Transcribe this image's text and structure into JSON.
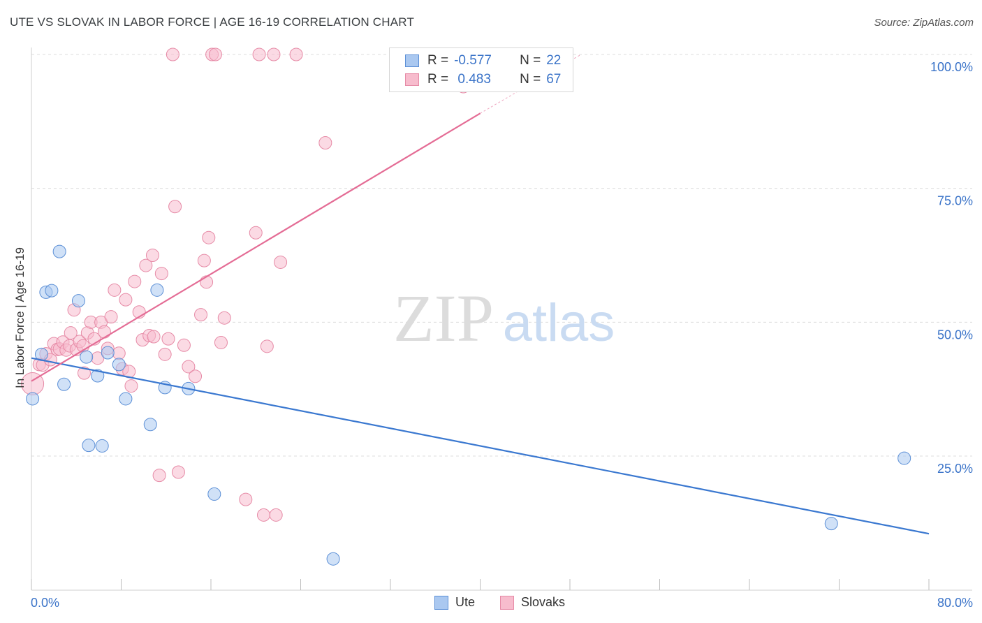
{
  "title": "UTE VS SLOVAK IN LABOR FORCE | AGE 16-19 CORRELATION CHART",
  "source": "Source: ZipAtlas.com",
  "watermark": {
    "zip": "ZIP",
    "atlas": "atlas"
  },
  "legend": {
    "rows": [
      {
        "r_label": "R =",
        "r_value": "-0.577",
        "n_label": "N =",
        "n_value": "22"
      },
      {
        "r_label": "R =",
        "r_value": " 0.483",
        "n_label": "N =",
        "n_value": "67"
      }
    ]
  },
  "bottom_legend": {
    "ute": "Ute",
    "slovaks": "Slovaks"
  },
  "colors": {
    "ute_fill": "#aac8f0",
    "ute_stroke": "#5b8fd6",
    "ute_line": "#3a78d0",
    "slovak_fill": "#f7bccd",
    "slovak_stroke": "#e68aa6",
    "slovak_line": "#e46c95",
    "axis_text": "#3a73c8",
    "grid": "#dcdcdc"
  },
  "chart_data": {
    "type": "scatter",
    "title": "UTE VS SLOVAK IN LABOR FORCE | AGE 16-19 CORRELATION CHART",
    "xlabel": "",
    "ylabel": "In Labor Force | Age 16-19",
    "xlim": [
      0,
      80
    ],
    "ylim": [
      0,
      103
    ],
    "x_tick_labels": [
      "0.0%",
      "80.0%"
    ],
    "y_ticks": [
      25,
      50,
      75,
      100
    ],
    "y_tick_labels": [
      "25.0%",
      "50.0%",
      "75.0%",
      "100.0%"
    ],
    "series": [
      {
        "name": "Ute",
        "r": -0.577,
        "n": 22,
        "points": [
          [
            0.1,
            35.7
          ],
          [
            0.9,
            44.0
          ],
          [
            1.3,
            55.6
          ],
          [
            1.8,
            55.9
          ],
          [
            2.5,
            63.2
          ],
          [
            2.9,
            38.4
          ],
          [
            4.2,
            54.0
          ],
          [
            4.9,
            43.5
          ],
          [
            5.1,
            27.0
          ],
          [
            5.9,
            40.0
          ],
          [
            6.3,
            26.9
          ],
          [
            6.8,
            44.3
          ],
          [
            7.8,
            42.1
          ],
          [
            8.4,
            35.7
          ],
          [
            10.6,
            30.9
          ],
          [
            11.2,
            56.0
          ],
          [
            11.9,
            37.8
          ],
          [
            14.0,
            37.6
          ],
          [
            16.3,
            17.9
          ],
          [
            26.9,
            5.8
          ],
          [
            71.3,
            12.4
          ],
          [
            77.8,
            24.6
          ]
        ],
        "trend": [
          [
            0,
            43.3
          ],
          [
            80,
            10.5
          ]
        ]
      },
      {
        "name": "Slovaks",
        "r": 0.483,
        "n": 67,
        "points": [
          [
            0.1,
            38.5
          ],
          [
            0.7,
            42.1
          ],
          [
            1.0,
            42.0
          ],
          [
            1.3,
            44.1
          ],
          [
            1.7,
            43.0
          ],
          [
            2.0,
            46.0
          ],
          [
            2.3,
            44.9
          ],
          [
            2.5,
            45.0
          ],
          [
            2.8,
            46.3
          ],
          [
            3.1,
            44.8
          ],
          [
            3.4,
            45.6
          ],
          [
            3.5,
            48.0
          ],
          [
            3.8,
            52.3
          ],
          [
            4.0,
            44.9
          ],
          [
            4.3,
            46.4
          ],
          [
            4.6,
            45.6
          ],
          [
            4.7,
            40.5
          ],
          [
            5.0,
            48.0
          ],
          [
            5.3,
            50.0
          ],
          [
            5.6,
            46.9
          ],
          [
            5.9,
            43.3
          ],
          [
            6.2,
            50.0
          ],
          [
            6.5,
            48.2
          ],
          [
            6.8,
            45.1
          ],
          [
            7.1,
            51.0
          ],
          [
            7.4,
            56.0
          ],
          [
            7.8,
            44.2
          ],
          [
            8.1,
            41.3
          ],
          [
            8.4,
            54.2
          ],
          [
            8.7,
            40.8
          ],
          [
            8.9,
            38.1
          ],
          [
            9.2,
            57.6
          ],
          [
            9.6,
            51.9
          ],
          [
            9.9,
            46.7
          ],
          [
            10.2,
            60.6
          ],
          [
            10.5,
            47.5
          ],
          [
            10.9,
            47.3
          ],
          [
            10.8,
            62.5
          ],
          [
            11.4,
            21.4
          ],
          [
            11.6,
            59.1
          ],
          [
            11.9,
            44.0
          ],
          [
            12.2,
            46.9
          ],
          [
            12.6,
            100.0
          ],
          [
            12.8,
            71.6
          ],
          [
            13.1,
            22.0
          ],
          [
            13.6,
            45.7
          ],
          [
            14.0,
            41.7
          ],
          [
            14.6,
            39.9
          ],
          [
            15.1,
            51.4
          ],
          [
            15.4,
            61.5
          ],
          [
            15.6,
            57.5
          ],
          [
            15.8,
            65.8
          ],
          [
            16.1,
            100.0
          ],
          [
            16.4,
            100.0
          ],
          [
            16.9,
            46.2
          ],
          [
            17.2,
            50.8
          ],
          [
            19.1,
            16.9
          ],
          [
            20.0,
            66.7
          ],
          [
            20.3,
            100.0
          ],
          [
            20.7,
            14.0
          ],
          [
            21.0,
            45.5
          ],
          [
            21.6,
            100.0
          ],
          [
            21.8,
            14.0
          ],
          [
            22.2,
            61.2
          ],
          [
            23.6,
            100.0
          ],
          [
            26.2,
            83.5
          ],
          [
            38.5,
            94.0
          ]
        ],
        "trend": [
          [
            0,
            39.0
          ],
          [
            40,
            89.0
          ],
          [
            49,
            100.0
          ]
        ]
      }
    ]
  }
}
